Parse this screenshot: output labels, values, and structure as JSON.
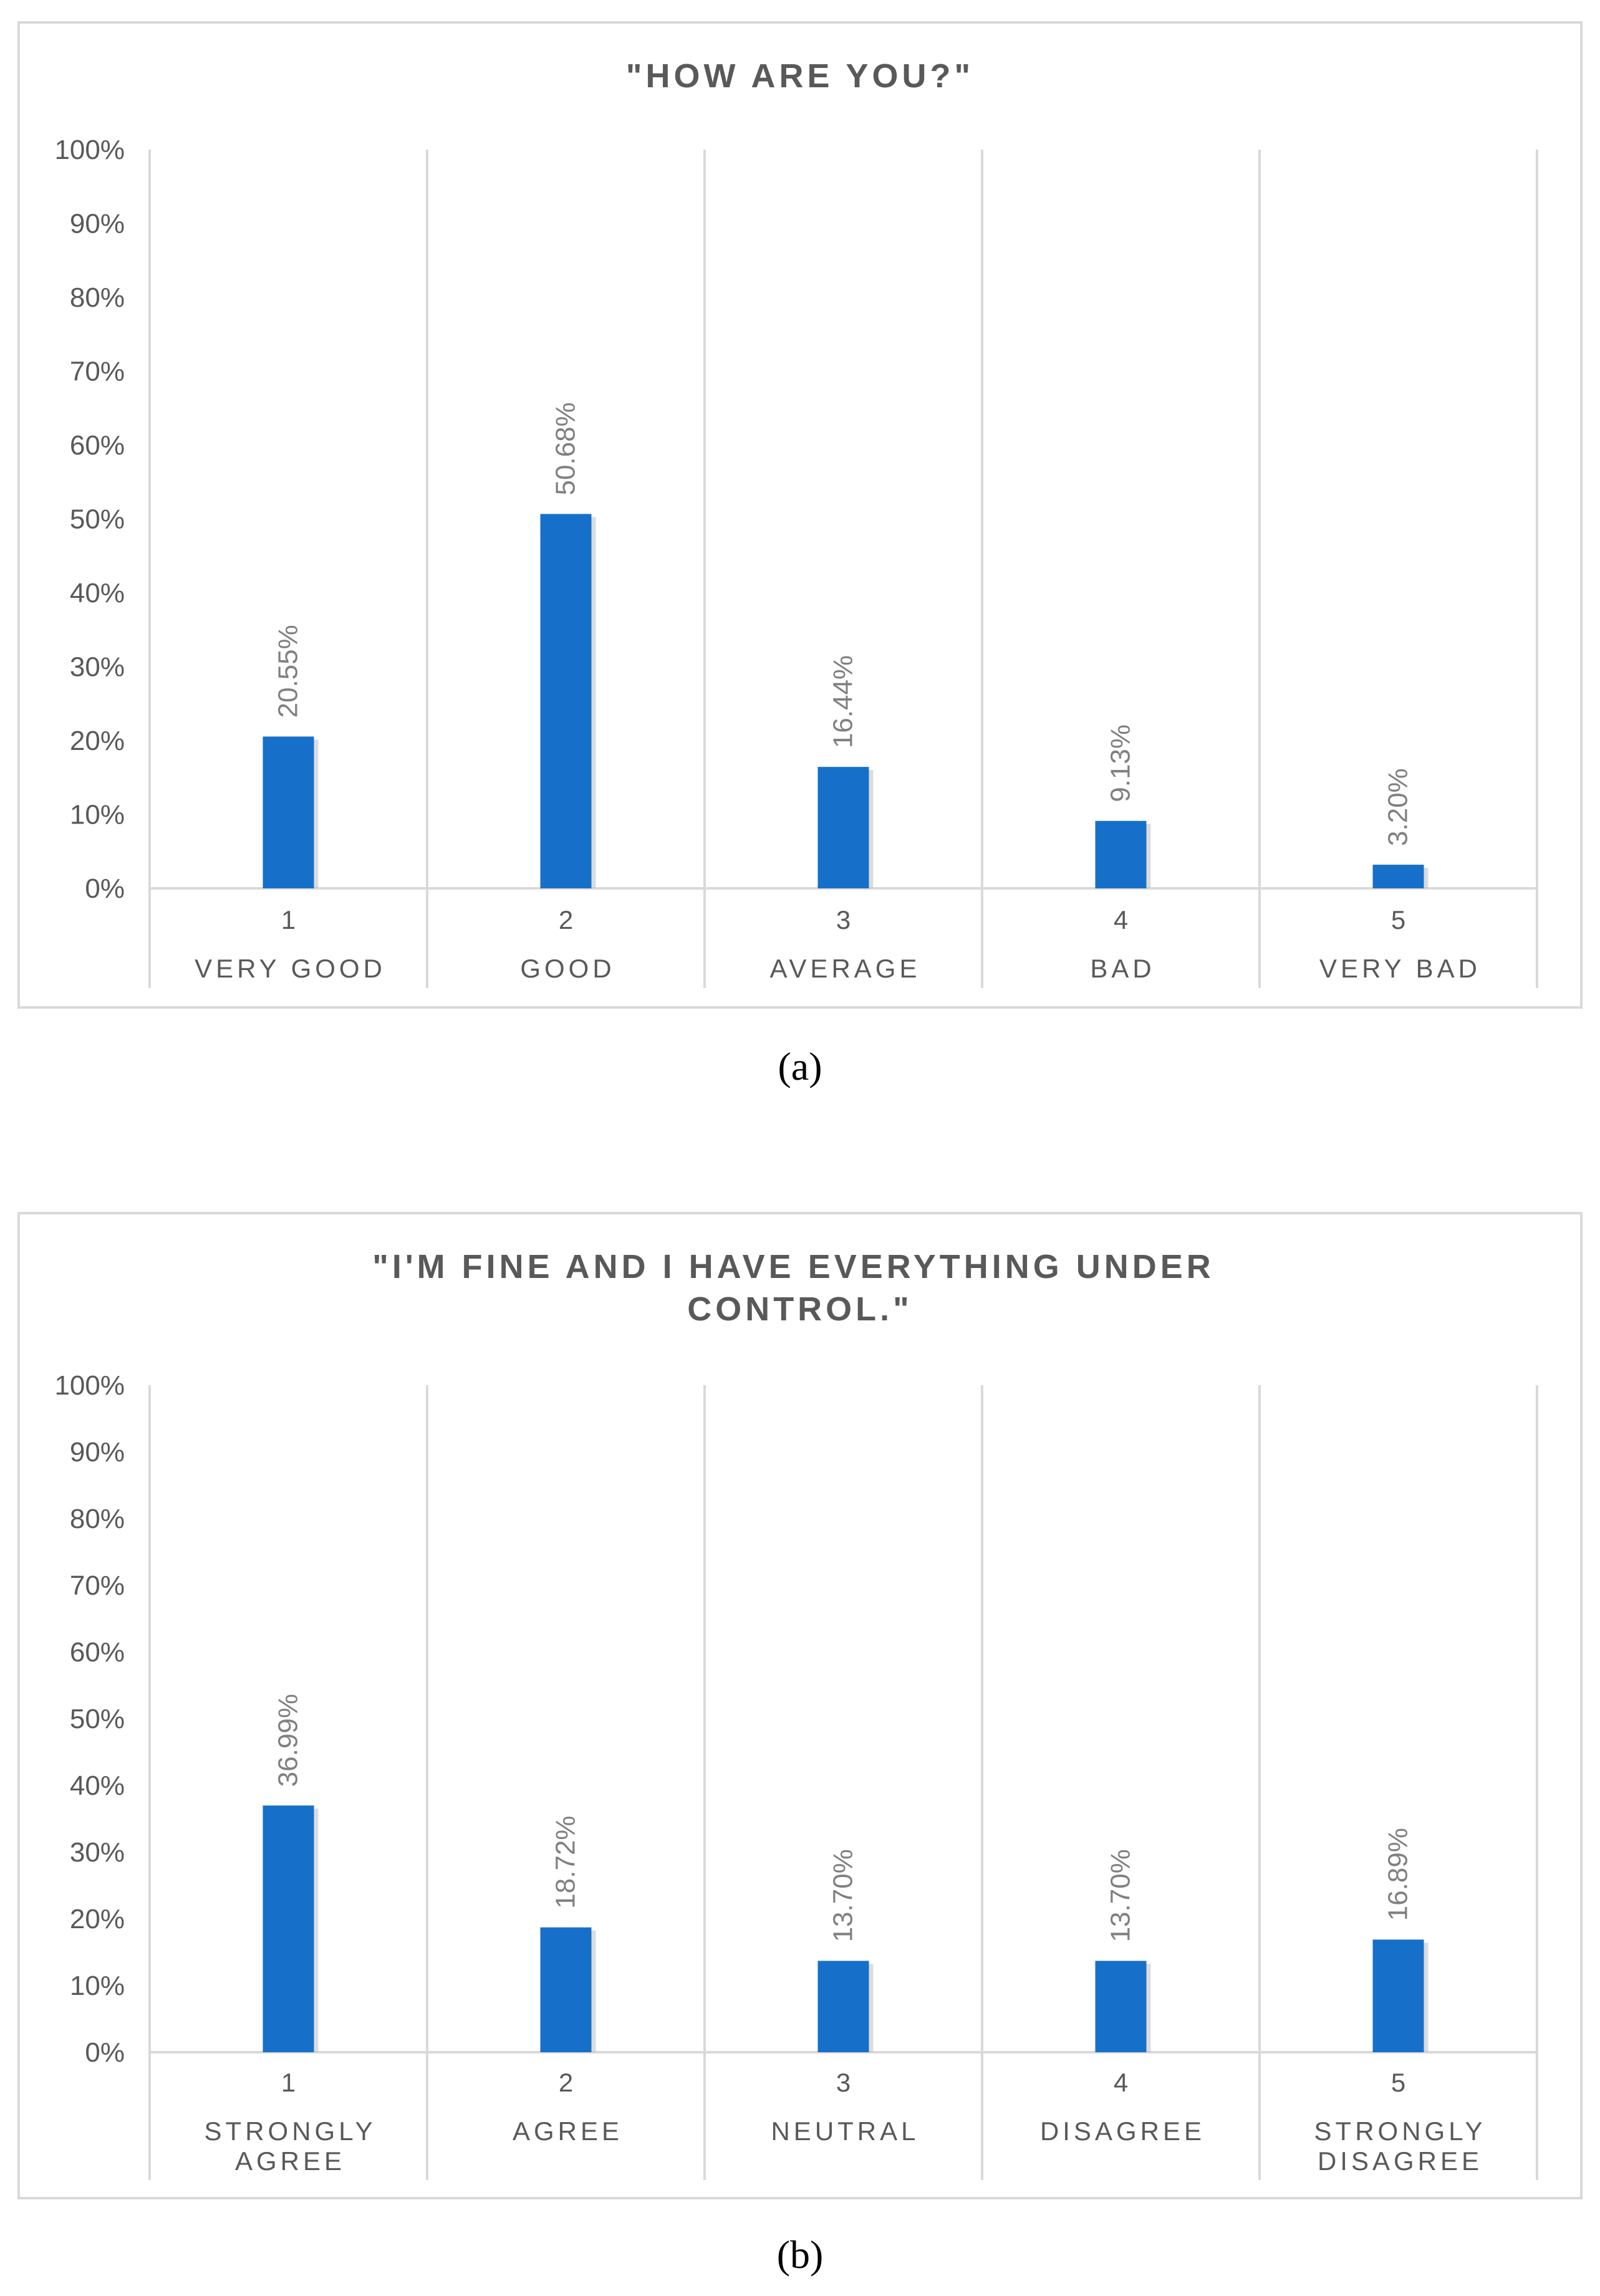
{
  "chart_data": [
    {
      "type": "bar",
      "title": "\"HOW ARE YOU?\"",
      "categories": [
        "1",
        "2",
        "3",
        "4",
        "5"
      ],
      "category_labels": [
        "VERY GOOD",
        "GOOD",
        "AVERAGE",
        "BAD",
        "VERY BAD"
      ],
      "values": [
        20.55,
        50.68,
        16.44,
        9.13,
        3.2
      ],
      "data_labels": [
        "20.55%",
        "50.68%",
        "16.44%",
        "9.13%",
        "3.20%"
      ],
      "yticks": [
        "0%",
        "10%",
        "20%",
        "30%",
        "40%",
        "50%",
        "60%",
        "70%",
        "80%",
        "90%",
        "100%"
      ],
      "ylim": [
        0,
        100
      ],
      "bar_color": "#1670C9",
      "grid": "vertical category separators",
      "caption": "(a)"
    },
    {
      "type": "bar",
      "title": "\"I'M FINE AND I HAVE EVERYTHING UNDER CONTROL.\"",
      "title_lines": [
        "\"I'M FINE AND I HAVE EVERYTHING UNDER",
        "CONTROL.\""
      ],
      "categories": [
        "1",
        "2",
        "3",
        "4",
        "5"
      ],
      "category_labels": [
        "STRONGLY AGREE",
        "AGREE",
        "NEUTRAL",
        "DISAGREE",
        "STRONGLY DISAGREE"
      ],
      "category_label_lines": [
        [
          "STRONGLY",
          "AGREE"
        ],
        [
          "AGREE"
        ],
        [
          "NEUTRAL"
        ],
        [
          "DISAGREE"
        ],
        [
          "STRONGLY",
          "DISAGREE"
        ]
      ],
      "values": [
        36.99,
        18.72,
        13.7,
        13.7,
        16.89
      ],
      "data_labels": [
        "36.99%",
        "18.72%",
        "13.70%",
        "13.70%",
        "16.89%"
      ],
      "yticks": [
        "0%",
        "10%",
        "20%",
        "30%",
        "40%",
        "50%",
        "60%",
        "70%",
        "80%",
        "90%",
        "100%"
      ],
      "ylim": [
        0,
        100
      ],
      "bar_color": "#1670C9",
      "grid": "vertical category separators",
      "caption": "(b)"
    }
  ]
}
